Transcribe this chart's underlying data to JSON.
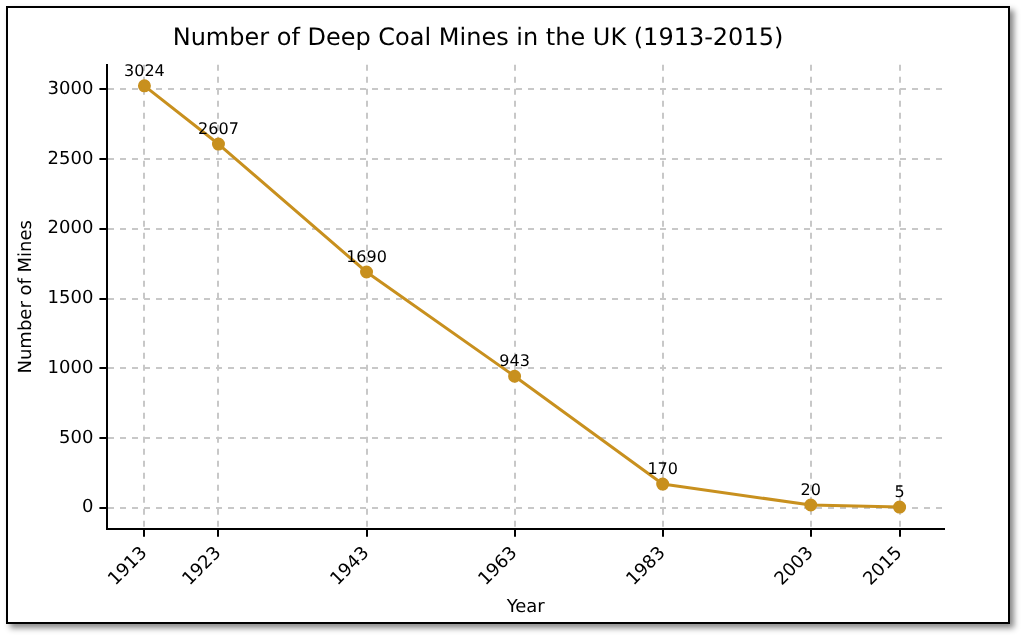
{
  "chart_data": {
    "type": "line",
    "title": "Number of Deep Coal Mines in the UK (1913-2015)",
    "xlabel": "Year",
    "ylabel": "Number of Mines",
    "x": [
      1913,
      1923,
      1943,
      1963,
      1983,
      2003,
      2015
    ],
    "series": [
      {
        "color": "#c8901e",
        "values": [
          3024,
          2607,
          1690,
          943,
          170,
          20,
          5
        ]
      }
    ],
    "xlim": [
      1908,
      2021
    ],
    "xticks": [
      1913,
      1923,
      1943,
      1963,
      1983,
      2003,
      2015
    ],
    "ylim": [
      -150,
      3175
    ],
    "yticks": [
      0,
      500,
      1000,
      1500,
      2000,
      2500,
      3000
    ],
    "grid": true,
    "marker": "circle",
    "line_style": "solid",
    "data_labels": true,
    "legend": false
  }
}
